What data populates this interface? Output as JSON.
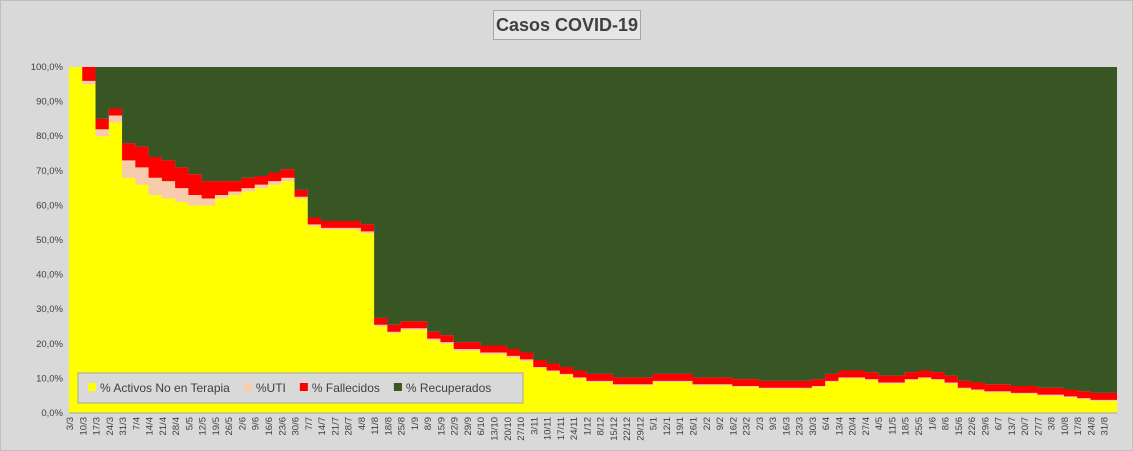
{
  "chart_data": {
    "type": "area",
    "stacked": true,
    "title": "Casos  COVID-19",
    "xlabel": "",
    "ylabel": "",
    "ylim": [
      0,
      100
    ],
    "y_ticks": [
      "0,0%",
      "10,0%",
      "20,0%",
      "30,0%",
      "40,0%",
      "50,0%",
      "60,0%",
      "70,0%",
      "80,0%",
      "90,0%",
      "100,0%"
    ],
    "x_tick_labels": [
      "3/3",
      "10/3",
      "17/3",
      "24/3",
      "31/3",
      "7/4",
      "14/4",
      "21/4",
      "28/4",
      "5/5",
      "12/5",
      "19/5",
      "26/5",
      "2/6",
      "9/6",
      "16/6",
      "23/6",
      "30/6",
      "7/7",
      "14/7",
      "21/7",
      "28/7",
      "4/8",
      "11/8",
      "18/8",
      "25/8",
      "1/9",
      "8/9",
      "15/9",
      "22/9",
      "29/9",
      "6/10",
      "13/10",
      "20/10",
      "27/10",
      "3/11",
      "10/11",
      "17/11",
      "24/11",
      "1/12",
      "8/12",
      "15/12",
      "22/12",
      "29/12",
      "5/1",
      "12/1",
      "19/1",
      "26/1",
      "2/2",
      "9/2",
      "16/2",
      "23/2",
      "2/3",
      "9/3",
      "16/3",
      "23/3",
      "30/3",
      "6/4",
      "13/4",
      "20/4",
      "27/4",
      "4/5",
      "11/5",
      "18/5",
      "25/5",
      "1/6",
      "8/6",
      "15/6",
      "22/6",
      "29/6",
      "6/7",
      "13/7",
      "20/7",
      "27/7",
      "3/8",
      "10/8",
      "17/8",
      "24/8",
      "31/8"
    ],
    "x": [
      "3/3",
      "10/3",
      "17/3",
      "24/3",
      "31/3",
      "7/4",
      "14/4",
      "21/4",
      "28/4",
      "5/5",
      "12/5",
      "19/5",
      "26/5",
      "2/6",
      "9/6",
      "16/6",
      "23/6",
      "30/6",
      "7/7",
      "14/7",
      "21/7",
      "28/7",
      "4/8",
      "11/8",
      "18/8",
      "25/8",
      "1/9",
      "8/9",
      "15/9",
      "22/9",
      "29/9",
      "6/10",
      "13/10",
      "20/10",
      "27/10",
      "3/11",
      "10/11",
      "17/11",
      "24/11",
      "1/12",
      "8/12",
      "15/12",
      "22/12",
      "29/12",
      "5/1",
      "12/1",
      "19/1",
      "26/1",
      "2/2",
      "9/2",
      "16/2",
      "23/2",
      "2/3",
      "9/3",
      "16/3",
      "23/3",
      "30/3",
      "6/4",
      "13/4",
      "20/4",
      "27/4",
      "4/5",
      "11/5",
      "18/5",
      "25/5",
      "1/6",
      "8/6",
      "15/6",
      "22/6",
      "29/6",
      "6/7",
      "13/7",
      "20/7",
      "27/7",
      "3/8",
      "10/8",
      "17/8",
      "24/8",
      "31/8"
    ],
    "legend_position": "bottom-left",
    "series": [
      {
        "name": "% Activos No en Terapia",
        "color": "#ffff00",
        "values": [
          100,
          95,
          80,
          84,
          68,
          66,
          63,
          62,
          61,
          60,
          60,
          62,
          63,
          64,
          65,
          66,
          67,
          62,
          54,
          53,
          53,
          53,
          52,
          25,
          23,
          24,
          24,
          21,
          20,
          18,
          18,
          17,
          17,
          16,
          15,
          13,
          12,
          11,
          10,
          9,
          9,
          8,
          8,
          8,
          9,
          9,
          9,
          8,
          8,
          8,
          7.5,
          7.5,
          7,
          7,
          7,
          7,
          7.5,
          9,
          10,
          10,
          9.5,
          8.5,
          8.5,
          9.5,
          10,
          9.5,
          8.5,
          7,
          6.5,
          6,
          6,
          5.5,
          5.5,
          5,
          5,
          4.5,
          4,
          3.5,
          3.5
        ]
      },
      {
        "name": "%UTI",
        "color": "#f8cbad",
        "values": [
          0,
          1,
          2,
          2,
          5,
          5,
          5,
          5,
          4,
          3,
          2,
          1,
          1,
          1,
          1,
          1,
          1,
          0.5,
          0.5,
          0.5,
          0.5,
          0.5,
          0.5,
          0.5,
          0.5,
          0.5,
          0.5,
          0.5,
          0.5,
          0.5,
          0.5,
          0.5,
          0.5,
          0.5,
          0.5,
          0.3,
          0.3,
          0.3,
          0.3,
          0.3,
          0.3,
          0.3,
          0.3,
          0.3,
          0.3,
          0.3,
          0.3,
          0.3,
          0.3,
          0.3,
          0.3,
          0.3,
          0.3,
          0.3,
          0.3,
          0.3,
          0.3,
          0.3,
          0.3,
          0.3,
          0.3,
          0.3,
          0.3,
          0.3,
          0.3,
          0.3,
          0.3,
          0.3,
          0.3,
          0.3,
          0.3,
          0.3,
          0.3,
          0.3,
          0.3,
          0.3,
          0.3,
          0.3,
          0.3
        ]
      },
      {
        "name": "% Fallecidos",
        "color": "#ff0000",
        "values": [
          0,
          4,
          3,
          2,
          5,
          6,
          6,
          6,
          6,
          6,
          5,
          4,
          3,
          3,
          2.5,
          2.5,
          2.5,
          2,
          2,
          2,
          2,
          2,
          2,
          2,
          2,
          2,
          2,
          2,
          2,
          2,
          2,
          2,
          2,
          2,
          2,
          2,
          2,
          2,
          2,
          2,
          2,
          2,
          2,
          2,
          2,
          2,
          2,
          2,
          2,
          2,
          2,
          2,
          2,
          2,
          2,
          2,
          2,
          2,
          2,
          2,
          2,
          2,
          2,
          2,
          2,
          2,
          2,
          2,
          2,
          2,
          2,
          2,
          2,
          2,
          2,
          2,
          2,
          2,
          2
        ]
      },
      {
        "name": "% Recuperados",
        "color": "#375623",
        "values": [
          0,
          0,
          15,
          12,
          22,
          23,
          26,
          27,
          29,
          31,
          33,
          33,
          33,
          32,
          31.5,
          30.5,
          29.5,
          35.5,
          43.5,
          44.5,
          44.5,
          44.5,
          45.5,
          72.5,
          74.5,
          73.5,
          73.5,
          76.5,
          77.5,
          79.5,
          79.5,
          80.5,
          80.5,
          81.5,
          82.5,
          84.7,
          85.7,
          86.7,
          87.7,
          88.7,
          88.7,
          89.7,
          89.7,
          89.7,
          88.7,
          88.7,
          88.7,
          89.7,
          89.7,
          89.7,
          90.2,
          90.2,
          90.7,
          90.7,
          90.7,
          90.7,
          90.2,
          88.7,
          87.7,
          87.7,
          88.2,
          89.2,
          89.2,
          88.2,
          87.7,
          88.2,
          89.2,
          90.7,
          91.2,
          91.7,
          91.7,
          92.2,
          92.2,
          92.7,
          92.7,
          93.2,
          93.7,
          94.2,
          94.2
        ]
      }
    ]
  }
}
